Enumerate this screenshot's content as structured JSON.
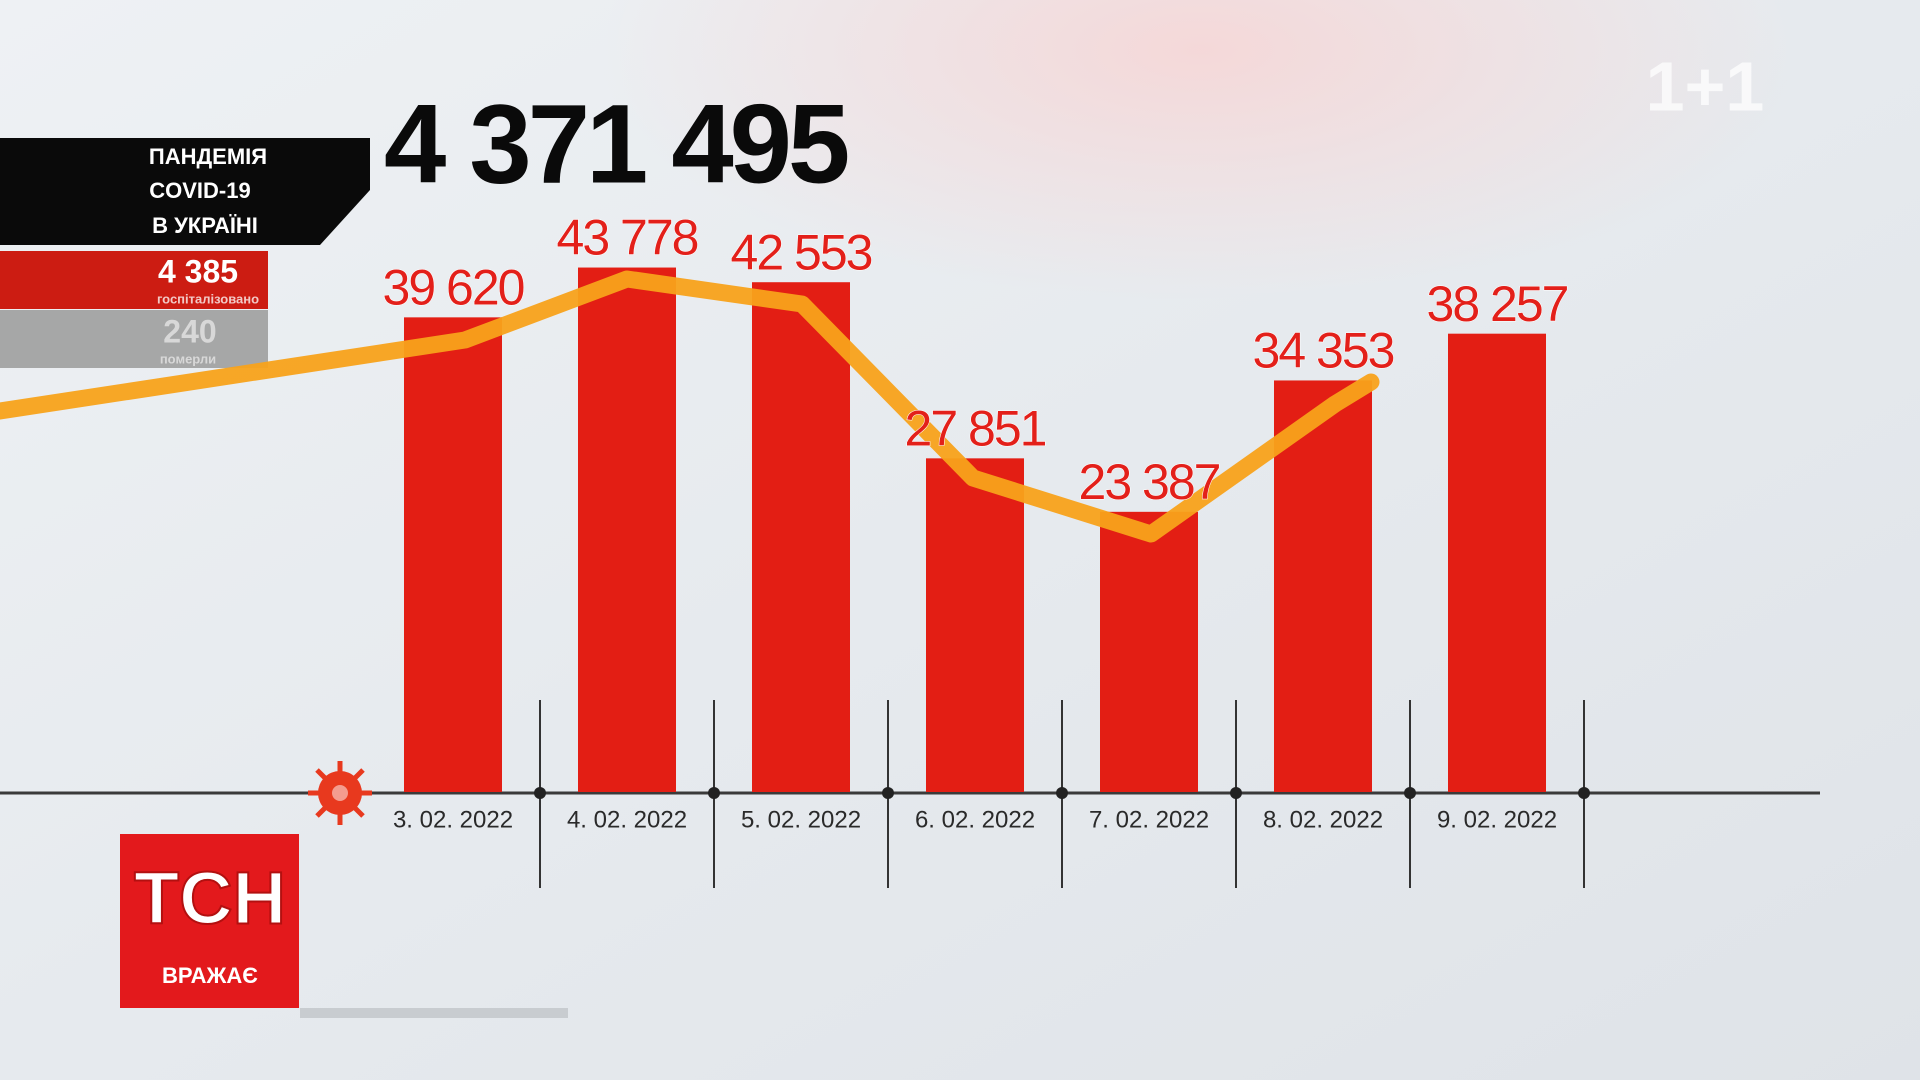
{
  "chart_data": {
    "type": "bar",
    "categories": [
      "3. 02. 2022",
      "4. 02. 2022",
      "5. 02. 2022",
      "6. 02. 2022",
      "7. 02. 2022",
      "8. 02. 2022",
      "9. 02. 2022"
    ],
    "values": [
      39620,
      43778,
      42553,
      27851,
      23387,
      34353,
      38257
    ],
    "value_labels": [
      "39 620",
      "43 778",
      "42 553",
      "27 851",
      "23 387",
      "34 353",
      "38 257"
    ],
    "color": "#e31e14",
    "ylim": [
      0,
      50000
    ]
  },
  "overlay": {
    "total": "4 371 495",
    "panel_title": [
      "ПАНДЕМІЯ",
      "COVID-19",
      "В УКРАЇНІ"
    ],
    "hospitalized": {
      "number": "4 385",
      "label": "госпіталізовано"
    },
    "deaths": {
      "number": "240",
      "label": "померли"
    },
    "channel": "1+1",
    "show": {
      "name": "ТСН",
      "tagline": "ВРАЖАЄ"
    }
  }
}
